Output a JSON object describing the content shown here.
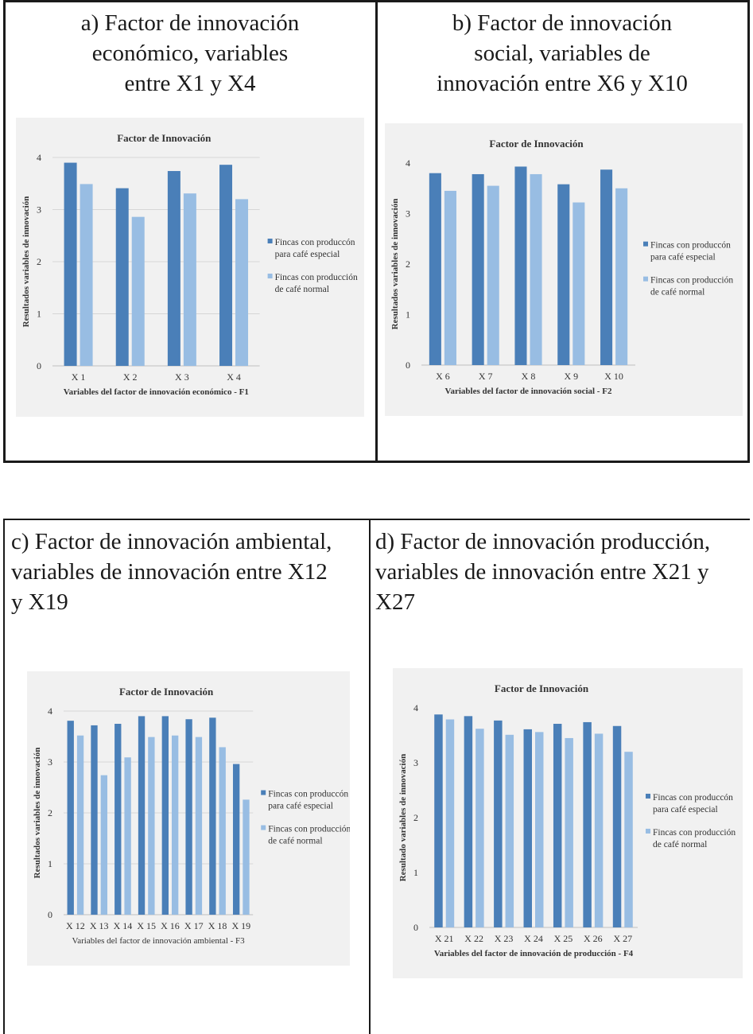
{
  "captions": {
    "a": "a) Factor de innovación económico, variables entre X1 y X4",
    "a_lines": [
      "a)  Factor de innovación",
      "económico, variables",
      "entre X1 y X4"
    ],
    "b_lines": [
      "b)    Factor de innovación",
      "social, variables de",
      "innovación entre X6 y X10"
    ],
    "c_lines": [
      "c)  Factor de innovación ambiental,",
      "variables de innovación entre X12",
      "y X19"
    ],
    "d_lines": [
      "d)  Factor de innovación producción,",
      "variables de innovación entre X21 y",
      "X27"
    ]
  },
  "colors": {
    "especial": "#4a7fb8",
    "normal": "#98bde3",
    "grid": "#d6d6d6",
    "chart_bg": "#f1f1f1"
  },
  "chart_data": [
    {
      "type": "bar",
      "title": "Factor de Innovación",
      "xlabel": "Variables del factor de  innovación económico - F1",
      "ylabel": "Resultados  variables  de  innovación",
      "ylim": [
        0,
        4
      ],
      "yticks": [
        0,
        1,
        2,
        3,
        4
      ],
      "grid": true,
      "legend_position": "right",
      "categories": [
        "X 1",
        "X 2",
        "X 3",
        "X 4"
      ],
      "series": [
        {
          "name": "Fincas con produccón para café especial",
          "name_lines": [
            "Fincas con produccón",
            "para café especial"
          ],
          "values": [
            3.9,
            3.41,
            3.74,
            3.86
          ]
        },
        {
          "name": "Fincas con producción de café normal",
          "name_lines": [
            "Fincas con producción",
            "de café normal"
          ],
          "values": [
            3.49,
            2.86,
            3.31,
            3.2
          ]
        }
      ]
    },
    {
      "type": "bar",
      "title": "Factor de Innovación",
      "xlabel": "Variables  del factor de innovación social - F2",
      "ylabel": "Resultados  variables de innovación",
      "ylim": [
        0,
        4
      ],
      "yticks": [
        0,
        1,
        2,
        3,
        4
      ],
      "grid": false,
      "legend_position": "right",
      "categories": [
        "X 6",
        "X 7",
        "X 8",
        "X 9",
        "X 10"
      ],
      "series": [
        {
          "name": "Fincas con produccón para café especial",
          "name_lines": [
            "Fincas con produccón",
            "para café especial"
          ],
          "values": [
            3.8,
            3.78,
            3.93,
            3.58,
            3.87
          ]
        },
        {
          "name": "Fincas con producción de café normal",
          "name_lines": [
            "Fincas con producción",
            "de café normal"
          ],
          "values": [
            3.45,
            3.55,
            3.78,
            3.22,
            3.5
          ]
        }
      ]
    },
    {
      "type": "bar",
      "title": "Factor de Innovación",
      "xlabel": "Variables del factor de innovación ambiental - F3",
      "ylabel": "Resultados  variables  de  innovación",
      "ylim": [
        0,
        4
      ],
      "yticks": [
        0,
        1,
        2,
        3,
        4
      ],
      "grid": true,
      "legend_position": "right",
      "categories": [
        "X 12",
        "X 13",
        "X 14",
        "X 15",
        "X 16",
        "X 17",
        "X 18",
        "X 19"
      ],
      "series": [
        {
          "name": "Fincas con produccón para café especial",
          "name_lines": [
            "Fincas con produccón",
            "para café especial"
          ],
          "values": [
            3.81,
            3.72,
            3.75,
            3.9,
            3.9,
            3.84,
            3.87,
            2.96
          ]
        },
        {
          "name": "Fincas con producción de café normal",
          "name_lines": [
            "Fincas con producción",
            "de café normal"
          ],
          "values": [
            3.52,
            2.74,
            3.09,
            3.49,
            3.52,
            3.49,
            3.29,
            2.26
          ]
        }
      ]
    },
    {
      "type": "bar",
      "title": "Factor de Innovación",
      "xlabel": "Variables  del factor de innovación  de producción - F4",
      "ylabel": "Resultado variables de innovación",
      "ylim": [
        0,
        4
      ],
      "yticks": [
        0,
        1,
        2,
        3,
        4
      ],
      "grid": false,
      "legend_position": "right",
      "categories": [
        "X 21",
        "X 22",
        "X 23",
        "X 24",
        "X 25",
        "X 26",
        "X 27"
      ],
      "series": [
        {
          "name": "Fincas con produccón para café especial",
          "name_lines": [
            "Fincas con produccón",
            "para café especial"
          ],
          "values": [
            3.88,
            3.85,
            3.77,
            3.61,
            3.71,
            3.74,
            3.67
          ]
        },
        {
          "name": "Fincas con producción de café normal",
          "name_lines": [
            "Fincas con producción",
            "de café normal"
          ],
          "values": [
            3.79,
            3.62,
            3.51,
            3.56,
            3.45,
            3.53,
            3.2
          ]
        }
      ]
    }
  ]
}
